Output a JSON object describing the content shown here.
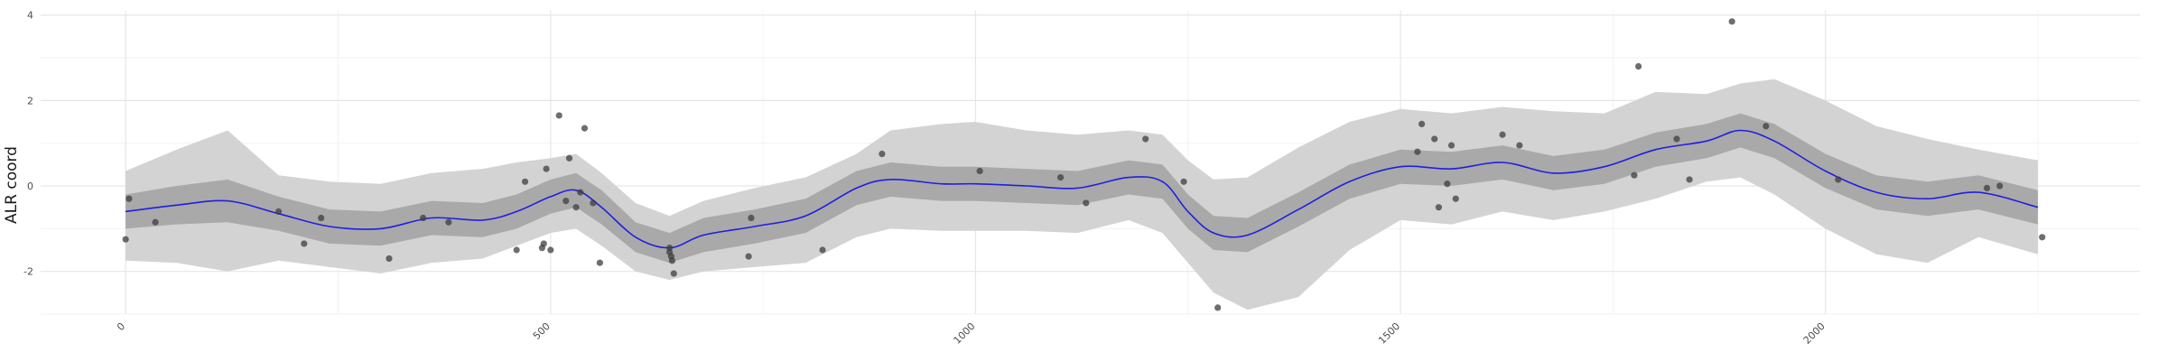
{
  "chart_data": {
    "type": "scatter",
    "title": "",
    "xlabel": "",
    "ylabel": "ALR coord",
    "xlim": [
      -100,
      2370
    ],
    "ylim": [
      -3.0,
      4.1
    ],
    "x_ticks": [
      0,
      500,
      1000,
      1500,
      2000
    ],
    "x_tick_labels": [
      "0",
      "500",
      "1000",
      "1500",
      "2000"
    ],
    "y_ticks": [
      -2,
      0,
      2,
      4
    ],
    "y_tick_labels": [
      "-2",
      "0",
      "2",
      "4"
    ],
    "grid": true,
    "legend": "none",
    "colors": {
      "smooth_line": "#1f1fe0",
      "inner_band": "#a9a9a9",
      "outer_band": "#d3d3d3",
      "points": "#3d3d3d",
      "grid_major": "#e6e6e6",
      "grid_minor": "#f2f2f2"
    },
    "smooth": {
      "x": [
        0,
        60,
        120,
        180,
        240,
        300,
        360,
        420,
        460,
        500,
        530,
        560,
        600,
        640,
        680,
        740,
        800,
        860,
        900,
        960,
        1000,
        1060,
        1120,
        1180,
        1220,
        1250,
        1280,
        1320,
        1380,
        1440,
        1500,
        1560,
        1620,
        1680,
        1740,
        1800,
        1860,
        1900,
        1940,
        2000,
        2060,
        2120,
        2180,
        2250
      ],
      "fit": [
        -0.6,
        -0.45,
        -0.35,
        -0.65,
        -0.95,
        -1.0,
        -0.75,
        -0.8,
        -0.6,
        -0.25,
        -0.1,
        -0.5,
        -1.2,
        -1.45,
        -1.15,
        -0.95,
        -0.7,
        -0.05,
        0.15,
        0.05,
        0.05,
        0.0,
        -0.05,
        0.2,
        0.1,
        -0.6,
        -1.1,
        -1.15,
        -0.55,
        0.1,
        0.45,
        0.4,
        0.55,
        0.3,
        0.45,
        0.85,
        1.05,
        1.3,
        1.05,
        0.35,
        -0.15,
        -0.3,
        -0.15,
        -0.5
      ],
      "inner_lo": [
        -1.0,
        -0.9,
        -0.85,
        -1.05,
        -1.35,
        -1.4,
        -1.15,
        -1.2,
        -1.0,
        -0.65,
        -0.5,
        -0.9,
        -1.55,
        -1.8,
        -1.55,
        -1.35,
        -1.1,
        -0.45,
        -0.25,
        -0.35,
        -0.35,
        -0.4,
        -0.45,
        -0.2,
        -0.3,
        -1.0,
        -1.5,
        -1.55,
        -0.95,
        -0.3,
        0.05,
        0.0,
        0.15,
        -0.1,
        0.05,
        0.45,
        0.65,
        0.9,
        0.65,
        -0.05,
        -0.55,
        -0.7,
        -0.55,
        -0.9
      ],
      "inner_hi": [
        -0.2,
        0.0,
        0.15,
        -0.25,
        -0.55,
        -0.6,
        -0.35,
        -0.4,
        -0.2,
        0.15,
        0.3,
        -0.1,
        -0.85,
        -1.1,
        -0.75,
        -0.55,
        -0.3,
        0.35,
        0.55,
        0.45,
        0.45,
        0.4,
        0.35,
        0.6,
        0.5,
        -0.2,
        -0.7,
        -0.75,
        -0.15,
        0.5,
        0.85,
        0.8,
        0.95,
        0.7,
        0.85,
        1.25,
        1.45,
        1.7,
        1.45,
        0.75,
        0.25,
        0.1,
        0.25,
        -0.1
      ],
      "outer_lo": [
        -1.75,
        -1.8,
        -2.0,
        -1.75,
        -1.9,
        -2.05,
        -1.8,
        -1.7,
        -1.4,
        -1.1,
        -1.0,
        -1.4,
        -2.0,
        -2.2,
        -2.0,
        -1.9,
        -1.8,
        -1.2,
        -1.0,
        -1.05,
        -1.05,
        -1.05,
        -1.1,
        -0.8,
        -1.1,
        -1.8,
        -2.5,
        -2.9,
        -2.6,
        -1.5,
        -0.8,
        -0.9,
        -0.6,
        -0.8,
        -0.6,
        -0.3,
        0.1,
        0.2,
        -0.2,
        -1.0,
        -1.6,
        -1.8,
        -1.2,
        -1.6
      ],
      "outer_hi": [
        0.35,
        0.85,
        1.3,
        0.25,
        0.1,
        0.05,
        0.3,
        0.4,
        0.55,
        0.65,
        0.75,
        0.3,
        -0.4,
        -0.7,
        -0.35,
        -0.05,
        0.2,
        0.75,
        1.3,
        1.45,
        1.5,
        1.3,
        1.2,
        1.3,
        1.2,
        0.6,
        0.15,
        0.2,
        0.9,
        1.5,
        1.8,
        1.7,
        1.85,
        1.75,
        1.7,
        2.2,
        2.15,
        2.4,
        2.5,
        2.0,
        1.4,
        1.1,
        0.85,
        0.6
      ]
    },
    "points": [
      {
        "x": 0,
        "y": -1.25
      },
      {
        "x": 4,
        "y": -0.3
      },
      {
        "x": 35,
        "y": -0.85
      },
      {
        "x": 180,
        "y": -0.6
      },
      {
        "x": 210,
        "y": -1.35
      },
      {
        "x": 230,
        "y": -0.75
      },
      {
        "x": 310,
        "y": -1.7
      },
      {
        "x": 350,
        "y": -0.75
      },
      {
        "x": 380,
        "y": -0.85
      },
      {
        "x": 460,
        "y": -1.5
      },
      {
        "x": 470,
        "y": 0.1
      },
      {
        "x": 490,
        "y": -1.45
      },
      {
        "x": 492,
        "y": -1.35
      },
      {
        "x": 495,
        "y": 0.4
      },
      {
        "x": 500,
        "y": -1.5
      },
      {
        "x": 510,
        "y": 1.65
      },
      {
        "x": 518,
        "y": -0.35
      },
      {
        "x": 522,
        "y": 0.65
      },
      {
        "x": 530,
        "y": -0.5
      },
      {
        "x": 535,
        "y": -0.15
      },
      {
        "x": 540,
        "y": 1.35
      },
      {
        "x": 550,
        "y": -0.4
      },
      {
        "x": 558,
        "y": -1.8
      },
      {
        "x": 640,
        "y": -1.45
      },
      {
        "x": 640,
        "y": -1.55
      },
      {
        "x": 642,
        "y": -1.65
      },
      {
        "x": 643,
        "y": -1.75
      },
      {
        "x": 645,
        "y": -2.05
      },
      {
        "x": 733,
        "y": -1.65
      },
      {
        "x": 736,
        "y": -0.75
      },
      {
        "x": 820,
        "y": -1.5
      },
      {
        "x": 890,
        "y": 0.75
      },
      {
        "x": 1005,
        "y": 0.35
      },
      {
        "x": 1100,
        "y": 0.2
      },
      {
        "x": 1130,
        "y": -0.4
      },
      {
        "x": 1200,
        "y": 1.1
      },
      {
        "x": 1245,
        "y": 0.1
      },
      {
        "x": 1285,
        "y": -2.85
      },
      {
        "x": 1520,
        "y": 0.8
      },
      {
        "x": 1525,
        "y": 1.45
      },
      {
        "x": 1540,
        "y": 1.1
      },
      {
        "x": 1545,
        "y": -0.5
      },
      {
        "x": 1555,
        "y": 0.05
      },
      {
        "x": 1560,
        "y": 0.95
      },
      {
        "x": 1565,
        "y": -0.3
      },
      {
        "x": 1620,
        "y": 1.2
      },
      {
        "x": 1640,
        "y": 0.95
      },
      {
        "x": 1775,
        "y": 0.25
      },
      {
        "x": 1780,
        "y": 2.8
      },
      {
        "x": 1825,
        "y": 1.1
      },
      {
        "x": 1840,
        "y": 0.15
      },
      {
        "x": 1890,
        "y": 3.85
      },
      {
        "x": 1930,
        "y": 1.4
      },
      {
        "x": 2015,
        "y": 0.15
      },
      {
        "x": 2190,
        "y": -0.05
      },
      {
        "x": 2205,
        "y": 0.0
      },
      {
        "x": 2255,
        "y": -1.2
      }
    ]
  }
}
